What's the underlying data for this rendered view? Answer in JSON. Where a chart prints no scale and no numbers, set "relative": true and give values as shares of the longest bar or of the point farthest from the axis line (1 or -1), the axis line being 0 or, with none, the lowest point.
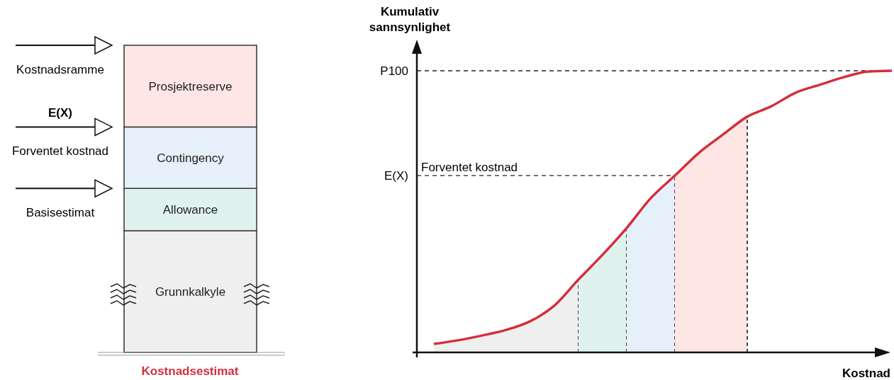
{
  "chart_data": [
    {
      "type": "bar",
      "stacked": true,
      "relative": true,
      "categories": [
        null
      ],
      "xlabel": "Kostnadsestimat",
      "series": [
        {
          "name": "Grunnkalkyle",
          "color": "#efefef",
          "values": [
            0.396
          ]
        },
        {
          "name": "Allowance",
          "color": "#e0f2ef",
          "values": [
            0.138
          ]
        },
        {
          "name": "Contingency",
          "color": "#e6f0fa",
          "values": [
            0.2
          ]
        },
        {
          "name": "Prosjektreserve",
          "color": "#fde6e4",
          "values": [
            0.266
          ]
        }
      ],
      "annotations": [
        "Kostnadsramme",
        "E(X)",
        "Forventet kostnad",
        "Basisestimat"
      ]
    },
    {
      "type": "line",
      "relative": true,
      "xlabel": "Kostnad",
      "ylabel": "Kumulativ sannsynlighet",
      "categories": [
        null,
        null,
        null,
        null,
        null,
        null,
        null,
        null,
        null,
        null,
        null,
        null,
        null,
        null,
        null,
        null,
        null,
        null,
        null,
        null
      ],
      "series": [
        {
          "type": "area",
          "color": "#efefef",
          "values": [
            0.03,
            0.043,
            0.06,
            0.08,
            0.111,
            0.166,
            0.259,
            null,
            null,
            null,
            null,
            null,
            null,
            null,
            null,
            null,
            null,
            null,
            null,
            null
          ]
        },
        {
          "type": "area",
          "color": "#e0f2ef",
          "values": [
            null,
            null,
            null,
            null,
            null,
            null,
            0.259,
            0.347,
            0.442,
            null,
            null,
            null,
            null,
            null,
            null,
            null,
            null,
            null,
            null,
            null
          ]
        },
        {
          "type": "area",
          "color": "#e6f0fa",
          "values": [
            null,
            null,
            null,
            null,
            null,
            null,
            null,
            null,
            0.442,
            0.548,
            0.628,
            null,
            null,
            null,
            null,
            null,
            null,
            null,
            null,
            null
          ]
        },
        {
          "type": "area",
          "color": "#fde6e4",
          "values": [
            null,
            null,
            null,
            null,
            null,
            null,
            null,
            null,
            null,
            null,
            0.628,
            0.709,
            0.774,
            0.837,
            null,
            null,
            null,
            null,
            null,
            null
          ]
        },
        {
          "type": "line",
          "color": "#d32f3c",
          "values": [
            0.03,
            0.043,
            0.06,
            0.08,
            0.111,
            0.166,
            0.259,
            0.347,
            0.442,
            0.548,
            0.628,
            0.709,
            0.774,
            0.837,
            0.874,
            0.922,
            0.95,
            0.977,
            0.997,
            1
          ]
        }
      ],
      "ref_lines": [
        {
          "axis": "y",
          "value": 1,
          "label": "P100",
          "line_style": "dashed"
        },
        {
          "axis": "y",
          "value": 0.628,
          "label": "E(X)",
          "line_style": "dashed"
        }
      ],
      "annotations": [
        "Forventet kostnad"
      ]
    }
  ]
}
